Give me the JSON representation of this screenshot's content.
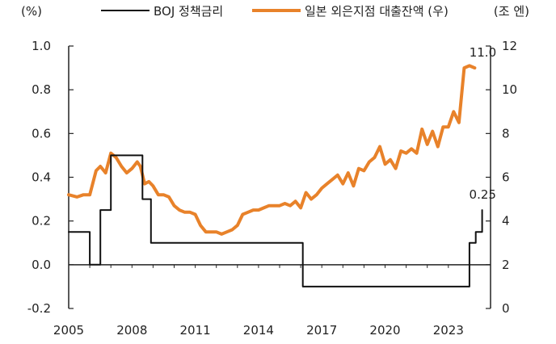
{
  "chart_data": {
    "type": "line",
    "left_unit": "(%)",
    "right_unit": "(조 엔)",
    "xlim": [
      2005,
      2025
    ],
    "left_ylim": [
      -0.2,
      1.0
    ],
    "right_ylim": [
      0,
      12
    ],
    "x_tick_labels": [
      "2005",
      "2008",
      "2011",
      "2014",
      "2017",
      "2020",
      "2023"
    ],
    "left_tick_labels": [
      "-0.2",
      "0.0",
      "0.2",
      "0.4",
      "0.6",
      "0.8",
      "1.0"
    ],
    "right_tick_labels": [
      "0",
      "2",
      "4",
      "6",
      "8",
      "10",
      "12"
    ],
    "series": [
      {
        "name": "BOJ 정책금리",
        "axis": "left",
        "color": "#111111",
        "x": [
          2005.0,
          2005.9,
          2006.0,
          2006.3,
          2006.5,
          2006.8,
          2007.0,
          2008.2,
          2008.5,
          2008.9,
          2009.0,
          2010.0,
          2012.0,
          2014.0,
          2015.5,
          2016.0,
          2016.1,
          2018.0,
          2020.0,
          2022.0,
          2023.9,
          2024.0,
          2024.25,
          2024.3,
          2024.6
        ],
        "y": [
          0.15,
          0.15,
          0.0,
          0.0,
          0.25,
          0.25,
          0.5,
          0.5,
          0.3,
          0.1,
          0.1,
          0.1,
          0.1,
          0.1,
          0.1,
          0.1,
          -0.1,
          -0.1,
          -0.1,
          -0.1,
          -0.1,
          0.1,
          0.1,
          0.15,
          0.25
        ]
      },
      {
        "name": "일본 외은지점 대출잔액 (우)",
        "axis": "right",
        "color": "#E8822A",
        "x": [
          2005.0,
          2005.4,
          2005.7,
          2006.0,
          2006.3,
          2006.5,
          2006.75,
          2007.0,
          2007.25,
          2007.5,
          2007.75,
          2008.0,
          2008.25,
          2008.4,
          2008.6,
          2008.8,
          2009.0,
          2009.25,
          2009.5,
          2009.75,
          2010.0,
          2010.25,
          2010.5,
          2010.75,
          2011.0,
          2011.25,
          2011.5,
          2011.75,
          2012.0,
          2012.25,
          2012.5,
          2012.75,
          2013.0,
          2013.25,
          2013.5,
          2013.75,
          2014.0,
          2014.25,
          2014.5,
          2014.75,
          2015.0,
          2015.25,
          2015.5,
          2015.75,
          2016.0,
          2016.25,
          2016.5,
          2016.75,
          2017.0,
          2017.25,
          2017.5,
          2017.75,
          2018.0,
          2018.25,
          2018.5,
          2018.75,
          2019.0,
          2019.25,
          2019.5,
          2019.75,
          2020.0,
          2020.25,
          2020.5,
          2020.75,
          2021.0,
          2021.25,
          2021.5,
          2021.75,
          2022.0,
          2022.25,
          2022.5,
          2022.75,
          2023.0,
          2023.25,
          2023.5,
          2023.75,
          2024.0,
          2024.25
        ],
        "y": [
          5.2,
          5.1,
          5.2,
          5.2,
          6.3,
          6.5,
          6.2,
          7.1,
          6.9,
          6.5,
          6.2,
          6.4,
          6.7,
          6.5,
          5.7,
          5.8,
          5.6,
          5.2,
          5.2,
          5.1,
          4.7,
          4.5,
          4.4,
          4.4,
          4.3,
          3.8,
          3.5,
          3.5,
          3.5,
          3.4,
          3.5,
          3.6,
          3.8,
          4.3,
          4.4,
          4.5,
          4.5,
          4.6,
          4.7,
          4.7,
          4.7,
          4.8,
          4.7,
          4.9,
          4.6,
          5.3,
          5.0,
          5.2,
          5.5,
          5.7,
          5.9,
          6.1,
          5.7,
          6.2,
          5.6,
          6.4,
          6.3,
          6.7,
          6.9,
          7.4,
          6.6,
          6.8,
          6.4,
          7.2,
          7.1,
          7.3,
          7.1,
          8.2,
          7.5,
          8.1,
          7.4,
          8.3,
          8.3,
          9.0,
          8.5,
          11.0,
          11.1,
          11.0
        ]
      }
    ],
    "annotations": [
      {
        "text": "11.0",
        "x": 2024.3,
        "y": 11.0,
        "axis": "right"
      },
      {
        "text": "0.25",
        "x": 2024.6,
        "y": 0.25,
        "axis": "left"
      }
    ],
    "grid": false,
    "legend_position": "top"
  }
}
